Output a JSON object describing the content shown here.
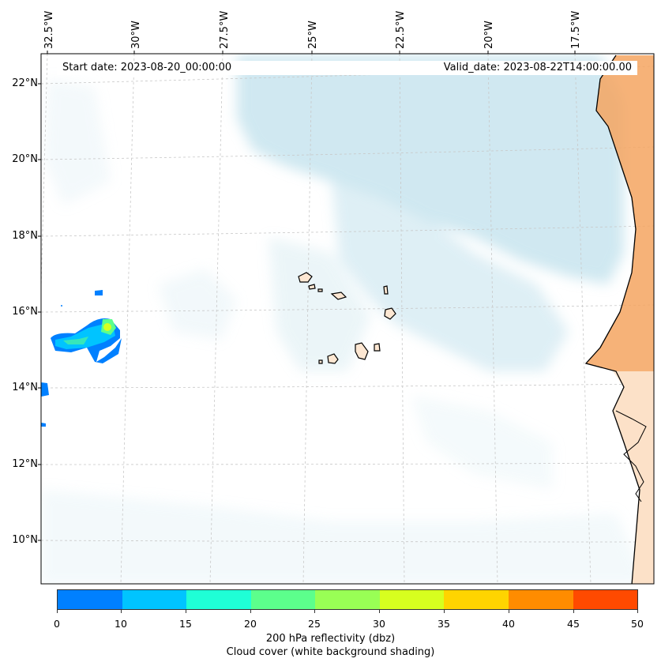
{
  "header": {
    "start_date": "Start date: 2023-08-20_00:00:00",
    "valid_date": "Valid_date: 2023-08-22T14:00:00.00"
  },
  "longitude_labels": [
    "32.5°W",
    "30°W",
    "27.5°W",
    "25°W",
    "22.5°W",
    "20°W",
    "17.5°W"
  ],
  "latitude_labels": [
    "22°N",
    "20°N",
    "18°N",
    "16°N",
    "14°N",
    "12°N",
    "10°N"
  ],
  "colorbar": {
    "ticks": [
      "0",
      "10",
      "15",
      "20",
      "25",
      "30",
      "35",
      "40",
      "45",
      "50"
    ],
    "colors": [
      "#0080ff",
      "#00c4ff",
      "#1fffd6",
      "#5cff8c",
      "#99ff55",
      "#d7ff1f",
      "#ffd400",
      "#ff8c00",
      "#ff4a00"
    ],
    "label_line1": "200 hPa reflectivity (dbz)",
    "label_line2": "Cloud cover (white background shading)"
  },
  "map": {
    "cloud_color": "#a9d6e5",
    "land_color": "#f4a460",
    "coast_color": "#000000",
    "reflectivity_colors": {
      "low": "#0080ff",
      "mid": "#00c4ff",
      "high": "#5cff8c",
      "peak": "#d7ff1f"
    }
  }
}
